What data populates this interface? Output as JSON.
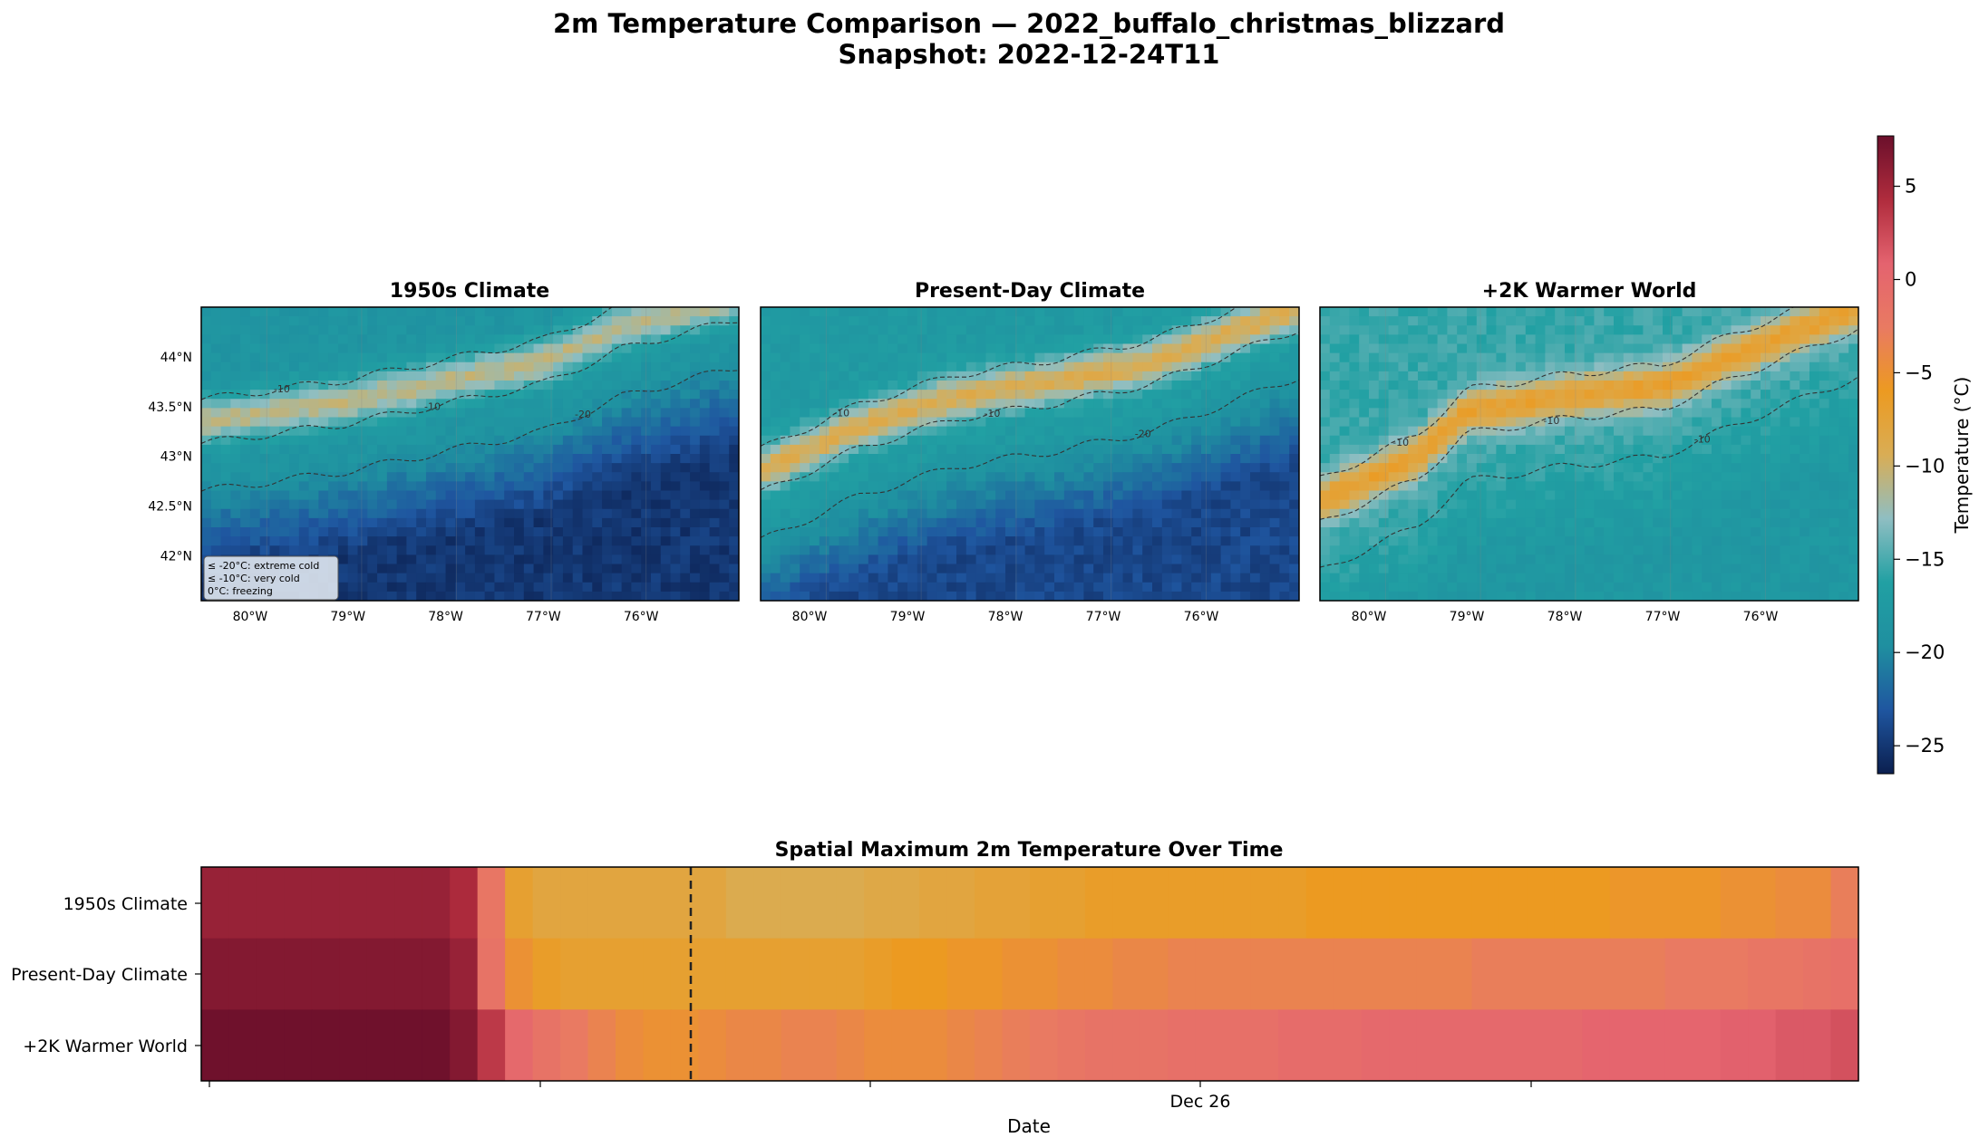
{
  "figure": {
    "title_line1": "2m Temperature Comparison — 2022_buffalo_christmas_blizzard",
    "title_line2": "Snapshot: 2022-12-24T11"
  },
  "colors": {
    "scale": [
      "#0b1f4f",
      "#1f56a0",
      "#1f8fa0",
      "#21a0a3",
      "#8fbec2",
      "#d9ad55",
      "#ec9a21",
      "#e97a62",
      "#e4636f",
      "#b02c3d",
      "#6b0f2b"
    ],
    "contour": "#333333"
  },
  "chart_data": [
    {
      "type": "heatmap",
      "title": "1950s Climate",
      "xlabel": "",
      "ylabel": "",
      "xlim": [
        -80.5,
        -75.0
      ],
      "ylim": [
        41.55,
        44.5
      ],
      "x_ticks": [
        "80°W",
        "79°W",
        "78°W",
        "77°W",
        "76°W"
      ],
      "y_ticks": [
        "44°N",
        "43.5°N",
        "43°N",
        "42.5°N",
        "42°N"
      ],
      "contour_labels": [
        "-10",
        "-10",
        "-20",
        "-20",
        "-20"
      ],
      "legend": [
        "≤ -20°C: extreme cold",
        "≤ -10°C: very cold",
        "0°C: freezing"
      ],
      "warm_band": [
        [
          -80.5,
          43.35
        ],
        [
          -79.0,
          43.55
        ],
        [
          -78.0,
          43.75
        ],
        [
          -77.0,
          43.95
        ],
        [
          -76.2,
          44.3
        ],
        [
          -75.0,
          44.6
        ]
      ],
      "band_strength": 0.45,
      "base_temp": -18.5,
      "south_cold": -25
    },
    {
      "type": "heatmap",
      "title": "Present-Day Climate",
      "xlabel": "",
      "ylabel": "",
      "xlim": [
        -80.5,
        -75.0
      ],
      "ylim": [
        41.55,
        44.5
      ],
      "x_ticks": [
        "80°W",
        "79°W",
        "78°W",
        "77°W",
        "76°W"
      ],
      "y_ticks": [],
      "contour_labels": [
        "-10",
        "-10",
        "-20"
      ],
      "warm_band": [
        [
          -80.5,
          42.85
        ],
        [
          -79.5,
          43.3
        ],
        [
          -78.5,
          43.6
        ],
        [
          -77.5,
          43.75
        ],
        [
          -76.5,
          43.95
        ],
        [
          -75.0,
          44.5
        ]
      ],
      "band_strength": 0.55,
      "base_temp": -17.5,
      "south_cold": -24
    },
    {
      "type": "heatmap",
      "title": "+2K Warmer World",
      "xlabel": "",
      "ylabel": "",
      "xlim": [
        -80.5,
        -75.0
      ],
      "ylim": [
        41.55,
        44.5
      ],
      "x_ticks": [
        "80°W",
        "79°W",
        "78°W",
        "77°W",
        "76°W"
      ],
      "y_ticks": [],
      "contour_labels": [
        "-10",
        "-10",
        "-10"
      ],
      "warm_band": [
        [
          -80.5,
          42.55
        ],
        [
          -79.5,
          43.0
        ],
        [
          -79.0,
          43.45
        ],
        [
          -78.0,
          43.6
        ],
        [
          -77.0,
          43.7
        ],
        [
          -76.3,
          44.0
        ],
        [
          -75.0,
          44.5
        ]
      ],
      "band_strength": 0.7,
      "base_temp": -15.5,
      "south_cold": -18
    },
    {
      "type": "heatmap",
      "title": "Spatial Maximum 2m Temperature Over Time",
      "xlabel": "Date",
      "ylabel": "",
      "rows": [
        "1950s Climate",
        "Present-Day Climate",
        "+2K Warmer World"
      ],
      "x_tick_labels": [
        "",
        "",
        "",
        "Dec 26",
        ""
      ],
      "marker_line": "2022-12-24T11",
      "columns": 60,
      "values": [
        [
          5.5,
          5.5,
          5.5,
          5.5,
          5.5,
          5.5,
          5.5,
          5.5,
          5.5,
          4.5,
          -2,
          -7,
          -8,
          -8,
          -8,
          -8,
          -8,
          -8,
          -8,
          -9,
          -9,
          -9,
          -9,
          -9,
          -8.5,
          -8.5,
          -8,
          -8,
          -7.5,
          -7.5,
          -7,
          -7,
          -6.5,
          -6.5,
          -6.5,
          -6.5,
          -6.5,
          -6.5,
          -6.5,
          -6.5,
          -6,
          -6,
          -6,
          -6,
          -6,
          -6,
          -6,
          -6,
          -6,
          -6,
          -6,
          -5.5,
          -5.5,
          -5.5,
          -5.5,
          -5,
          -5,
          -4.5,
          -4.5,
          -3
        ],
        [
          6.5,
          6.5,
          6.5,
          6.5,
          6.5,
          6.5,
          6.5,
          6.5,
          6.5,
          5.5,
          -1.5,
          -5,
          -6.5,
          -7,
          -7,
          -7,
          -7,
          -7,
          -7,
          -7,
          -7,
          -7,
          -7,
          -7,
          -6.5,
          -6,
          -6,
          -5.5,
          -5.5,
          -5,
          -5,
          -4.5,
          -4.5,
          -4,
          -4,
          -3.5,
          -3.5,
          -3.5,
          -3.5,
          -3.5,
          -3.5,
          -3.5,
          -3.5,
          -3.5,
          -3.5,
          -3.5,
          -3,
          -3,
          -3,
          -3,
          -3,
          -3,
          -3,
          -2.5,
          -2.5,
          -2.5,
          -2,
          -2,
          -1.5,
          -1
        ],
        [
          7.5,
          7.5,
          7.5,
          7.5,
          7.5,
          7.5,
          7.5,
          7.5,
          7.5,
          6.5,
          3.5,
          0,
          -1.5,
          -2.5,
          -3.5,
          -4.5,
          -5,
          -5,
          -4.5,
          -4,
          -4,
          -3.5,
          -3.5,
          -4,
          -4.5,
          -4.5,
          -4.5,
          -4,
          -3.5,
          -3,
          -2.5,
          -2,
          -1.5,
          -1.5,
          -1.5,
          -1,
          -1,
          -1,
          -1,
          -0.5,
          -0.5,
          -0.5,
          0,
          0,
          0,
          0,
          0,
          0,
          0,
          0,
          0.5,
          0.5,
          0.5,
          0.5,
          0.5,
          1,
          1,
          1.5,
          1.5,
          2
        ]
      ]
    },
    {
      "type": "heatmap",
      "title": "",
      "colorbar_label": "Temperature (°C)",
      "vmin": -26.5,
      "vmax": 7.7,
      "ticks": [
        "5",
        "0",
        "−5",
        "−10",
        "−15",
        "−20",
        "−25"
      ],
      "tick_values": [
        5,
        0,
        -5,
        -10,
        -15,
        -20,
        -25
      ]
    }
  ]
}
